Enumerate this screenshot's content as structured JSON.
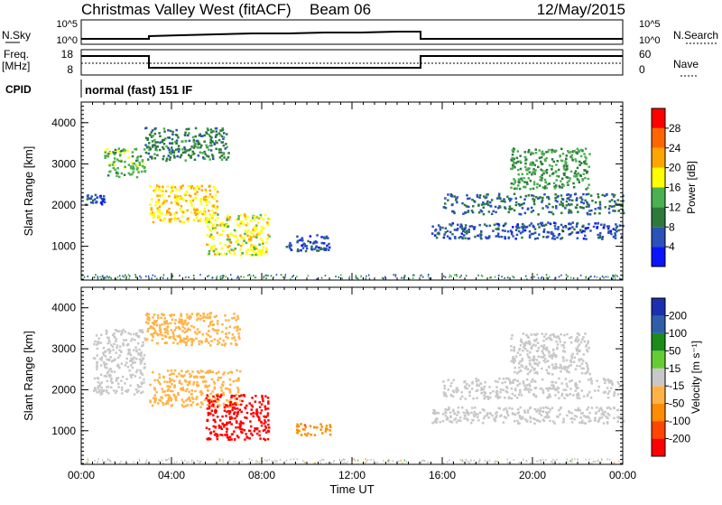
{
  "header": {
    "title": "Christmas Valley West (fitACF)",
    "beam": "Beam 06",
    "date": "12/May/2015"
  },
  "small_panels": {
    "nsky": {
      "label": "N.Sky",
      "left_ticks": [
        "10^5",
        "10^0"
      ],
      "right_ticks": [
        "10^5",
        "10^0"
      ],
      "right_label": "N.Search"
    },
    "freq": {
      "label_line1": "Freq.",
      "label_line2": "[MHz]",
      "left_ticks": [
        "18",
        "8"
      ],
      "right_ticks": [
        "60",
        "0"
      ],
      "right_label": "Nave"
    },
    "cpid": {
      "label": "CPID",
      "text": "normal (fast) 151 IF"
    }
  },
  "colors": {
    "power_scale": [
      "#0a14ff",
      "#2a52b8",
      "#2d7a3c",
      "#4cb050",
      "#ffff00",
      "#ffa500",
      "#ff6600",
      "#ff0000"
    ],
    "velocity_scale": [
      "#ff0000",
      "#ff4500",
      "#ff8c00",
      "#ffb347",
      "#c8c8c8",
      "#66cc33",
      "#1a8c1a",
      "#2e5fa8",
      "#1c2fb0"
    ]
  },
  "chart_data": [
    {
      "type": "heatmap",
      "name": "power",
      "xlabel": "Time UT",
      "ylabel": "Slant Range [km]",
      "x_ticks": [
        "00:00",
        "04:00",
        "08:00",
        "12:00",
        "16:00",
        "20:00",
        "00:00"
      ],
      "y_ticks": [
        "1000",
        "2000",
        "3000",
        "4000"
      ],
      "xlim_hours": [
        0,
        24
      ],
      "ylim_km": [
        180,
        4500
      ],
      "colorbar": {
        "label": "Power [dB]",
        "ticks": [
          "4",
          "8",
          "12",
          "16",
          "20",
          "24",
          "28"
        ],
        "range": [
          0,
          32
        ]
      },
      "echo_regions": [
        {
          "t_start": 0.0,
          "t_end": 1.0,
          "r_start": 2000,
          "r_end": 2300,
          "p": 6
        },
        {
          "t_start": 1.0,
          "t_end": 2.8,
          "r_start": 2700,
          "r_end": 3400,
          "p": 14
        },
        {
          "t_start": 2.8,
          "t_end": 6.5,
          "r_start": 3100,
          "r_end": 3900,
          "p": 10
        },
        {
          "t_start": 3.0,
          "t_end": 6.0,
          "r_start": 1600,
          "r_end": 2500,
          "p": 20
        },
        {
          "t_start": 5.5,
          "t_end": 8.3,
          "r_start": 800,
          "r_end": 1800,
          "p": 18
        },
        {
          "t_start": 9.0,
          "t_end": 11.0,
          "r_start": 900,
          "r_end": 1300,
          "p": 6
        },
        {
          "t_start": 15.5,
          "t_end": 24.0,
          "r_start": 1200,
          "r_end": 1600,
          "p": 6
        },
        {
          "t_start": 16.0,
          "t_end": 24.0,
          "r_start": 1800,
          "r_end": 2300,
          "p": 8
        },
        {
          "t_start": 19.0,
          "t_end": 22.5,
          "r_start": 2400,
          "r_end": 3400,
          "p": 12
        }
      ]
    },
    {
      "type": "heatmap",
      "name": "velocity",
      "xlabel": "Time UT",
      "ylabel": "Slant Range [km]",
      "x_ticks": [
        "00:00",
        "04:00",
        "08:00",
        "12:00",
        "16:00",
        "20:00",
        "00:00"
      ],
      "y_ticks": [
        "1000",
        "2000",
        "3000",
        "4000"
      ],
      "xlim_hours": [
        0,
        24
      ],
      "ylim_km": [
        180,
        4500
      ],
      "colorbar": {
        "label": "Velocity [m s⁻¹]",
        "ticks": [
          "200",
          "100",
          "50",
          "15",
          "-15",
          "-50",
          "-100",
          "-200"
        ],
        "range": [
          -250,
          250
        ]
      },
      "echo_regions": [
        {
          "t_start": 0.5,
          "t_end": 2.8,
          "r_start": 1900,
          "r_end": 3500,
          "v": -5
        },
        {
          "t_start": 2.8,
          "t_end": 7.0,
          "r_start": 3100,
          "r_end": 3900,
          "v": -60
        },
        {
          "t_start": 3.0,
          "t_end": 7.0,
          "r_start": 1600,
          "r_end": 2500,
          "v": -50
        },
        {
          "t_start": 5.5,
          "t_end": 8.3,
          "r_start": 800,
          "r_end": 1900,
          "v": -220
        },
        {
          "t_start": 9.5,
          "t_end": 11.0,
          "r_start": 900,
          "r_end": 1200,
          "v": -120
        },
        {
          "t_start": 15.5,
          "t_end": 24.0,
          "r_start": 1200,
          "r_end": 1600,
          "v": 0
        },
        {
          "t_start": 16.0,
          "t_end": 24.0,
          "r_start": 1800,
          "r_end": 2300,
          "v": 0
        },
        {
          "t_start": 19.0,
          "t_end": 22.5,
          "r_start": 2400,
          "r_end": 3400,
          "v": 5
        }
      ]
    }
  ]
}
